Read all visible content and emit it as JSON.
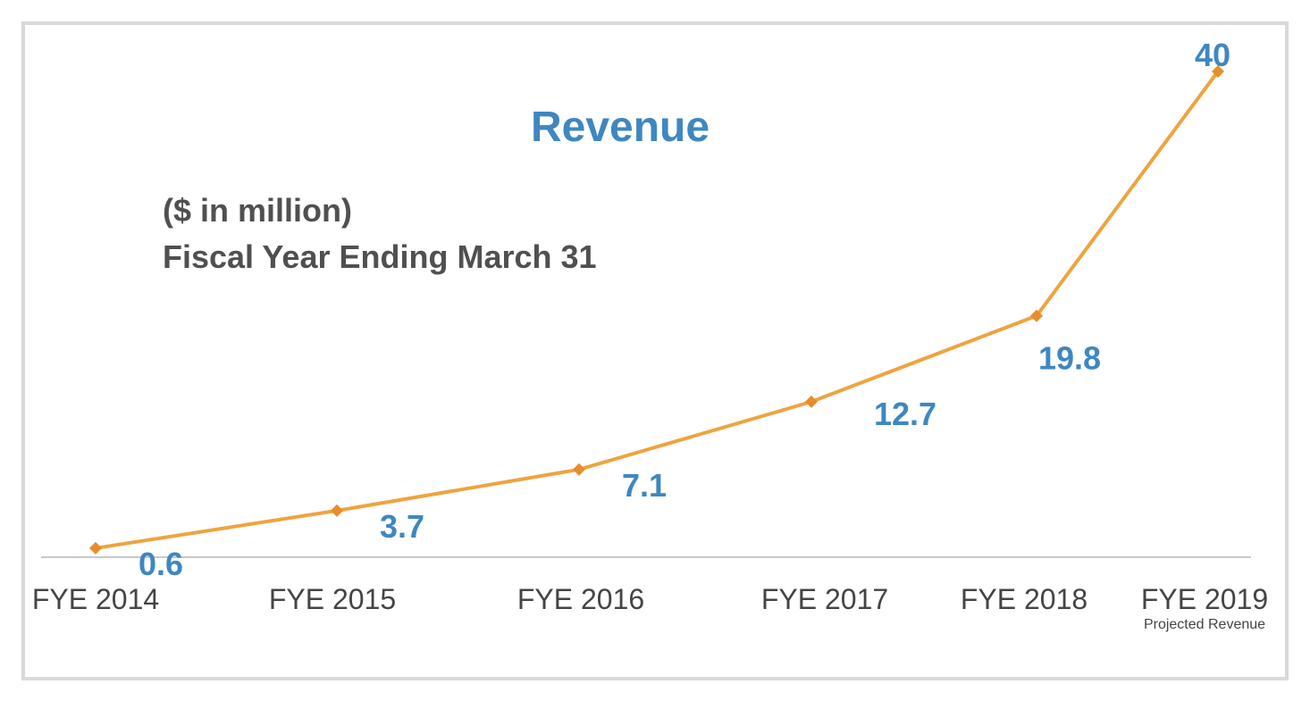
{
  "chart_data": {
    "type": "line",
    "title": "Revenue",
    "subtitle_lines": [
      "($ in million)",
      "Fiscal Year Ending March 31"
    ],
    "categories": [
      "FYE 2014",
      "FYE 2015",
      "FYE 2016",
      "FYE 2017",
      "FYE 2018",
      "FYE 2019"
    ],
    "category_notes": [
      "",
      "",
      "",
      "",
      "",
      "Projected Revenue"
    ],
    "series": [
      {
        "values": [
          0.6,
          3.7,
          7.1,
          12.7,
          19.8,
          40
        ]
      }
    ],
    "data_labels": [
      "0.6",
      "3.7",
      "7.1",
      "12.7",
      "19.8",
      "40"
    ],
    "ylim": [
      0,
      41
    ],
    "grid": false,
    "legend": "none",
    "colors": {
      "line": "#eea43f",
      "marker": "#e88d2d",
      "label": "#3f87c0",
      "title": "#3f87c0",
      "subtitle": "#505050",
      "axis": "#c8c8c8",
      "tick": "#444444"
    }
  }
}
